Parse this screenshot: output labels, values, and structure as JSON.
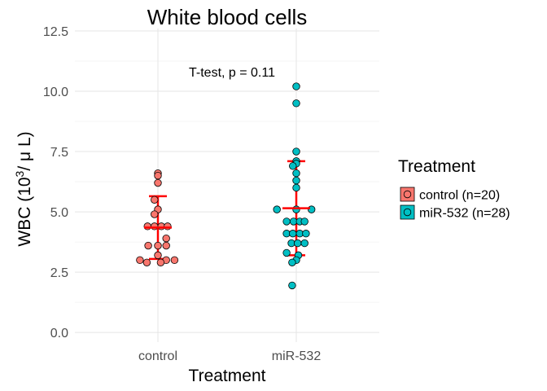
{
  "chart_data": {
    "type": "scatter",
    "title": "White blood cells",
    "xlabel": "Treatment",
    "ylabel": {
      "prefix": "WBC (10",
      "superscript": "3",
      "suffix": "/ μ L)"
    },
    "annotation": "T-test, p = 0.11",
    "categories": [
      "control",
      "miR-532"
    ],
    "ylim": [
      -0.4,
      12.6
    ],
    "yticks": [
      0.0,
      2.5,
      5.0,
      7.5,
      10.0,
      12.5
    ],
    "ytick_labels": [
      "0.0",
      "2.5",
      "5.0",
      "7.5",
      "10.0",
      "12.5"
    ],
    "grid": true,
    "legend": {
      "title": "Treatment",
      "placement": "right",
      "entries": [
        "control (n=20)",
        "miR-532 (n=28)"
      ]
    },
    "series": [
      {
        "name": "control (n=20)",
        "category": "control",
        "color": "#F8766D",
        "values": [
          6.6,
          6.5,
          6.2,
          5.5,
          5.1,
          4.9,
          4.4,
          4.4,
          4.4,
          4.4,
          3.9,
          3.6,
          3.6,
          3.6,
          3.2,
          3.0,
          3.0,
          3.0,
          2.9,
          2.9
        ],
        "jitter": [
          0.0,
          0.0,
          0.0,
          -0.05,
          0.0,
          -0.05,
          -0.15,
          -0.05,
          0.05,
          0.14,
          0.12,
          -0.14,
          0.0,
          0.12,
          0.0,
          -0.26,
          0.12,
          0.24,
          -0.16,
          0.04
        ],
        "mean": 4.35,
        "sd_low": 3.05,
        "sd_high": 5.65
      },
      {
        "name": "miR-532 (n=28)",
        "category": "miR-532",
        "color": "#00BFC4",
        "values": [
          10.2,
          9.5,
          7.5,
          7.1,
          7.0,
          6.9,
          6.6,
          6.3,
          6.0,
          5.1,
          5.1,
          5.1,
          4.6,
          4.6,
          4.6,
          4.6,
          4.1,
          4.1,
          4.1,
          4.1,
          3.7,
          3.7,
          3.7,
          3.3,
          3.2,
          3.0,
          2.9,
          1.95
        ],
        "jitter": [
          0.0,
          0.0,
          0.0,
          0.0,
          0.0,
          -0.05,
          0.0,
          0.0,
          0.0,
          -0.28,
          0.0,
          0.22,
          -0.14,
          -0.04,
          0.05,
          0.12,
          -0.14,
          -0.05,
          0.05,
          0.14,
          -0.07,
          0.02,
          0.12,
          -0.14,
          0.03,
          0.0,
          -0.06,
          -0.06
        ],
        "mean": 5.15,
        "sd_low": 3.2,
        "sd_high": 7.1
      }
    ]
  }
}
